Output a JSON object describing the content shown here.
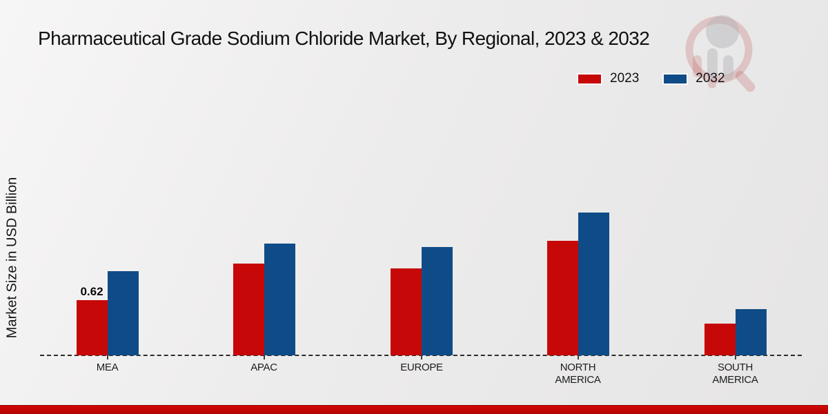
{
  "header": {
    "title": "Pharmaceutical Grade Sodium Chloride Market, By Regional, 2023 & 2032"
  },
  "chart_data": {
    "type": "bar",
    "title": "Pharmaceutical Grade Sodium Chloride Market, By Regional, 2023 & 2032",
    "xlabel": "",
    "ylabel": "Market Size in USD Billion",
    "categories": [
      "MEA",
      "APAC",
      "EUROPE",
      "NORTH AMERICA",
      "SOUTH AMERICA"
    ],
    "series": [
      {
        "name": "2023",
        "color": "#c70808",
        "values": [
          0.62,
          1.03,
          0.98,
          1.29,
          0.36
        ]
      },
      {
        "name": "2032",
        "color": "#0f4c87",
        "values": [
          0.95,
          1.26,
          1.22,
          1.61,
          0.52
        ]
      }
    ],
    "ylim": [
      0,
      1.7
    ],
    "grid": false,
    "legend_position": "top-right",
    "annotations": [
      {
        "category": "MEA",
        "series": "2023",
        "text": "0.62"
      }
    ]
  },
  "colors": {
    "series_2023": "#c70808",
    "series_2032": "#0f4c87",
    "footer_red": "#c20504",
    "baseline": "#2b2b2b",
    "background": "#ebeaea"
  },
  "watermark": {
    "red": "#b64a4a",
    "gray": "#a9a9af"
  }
}
